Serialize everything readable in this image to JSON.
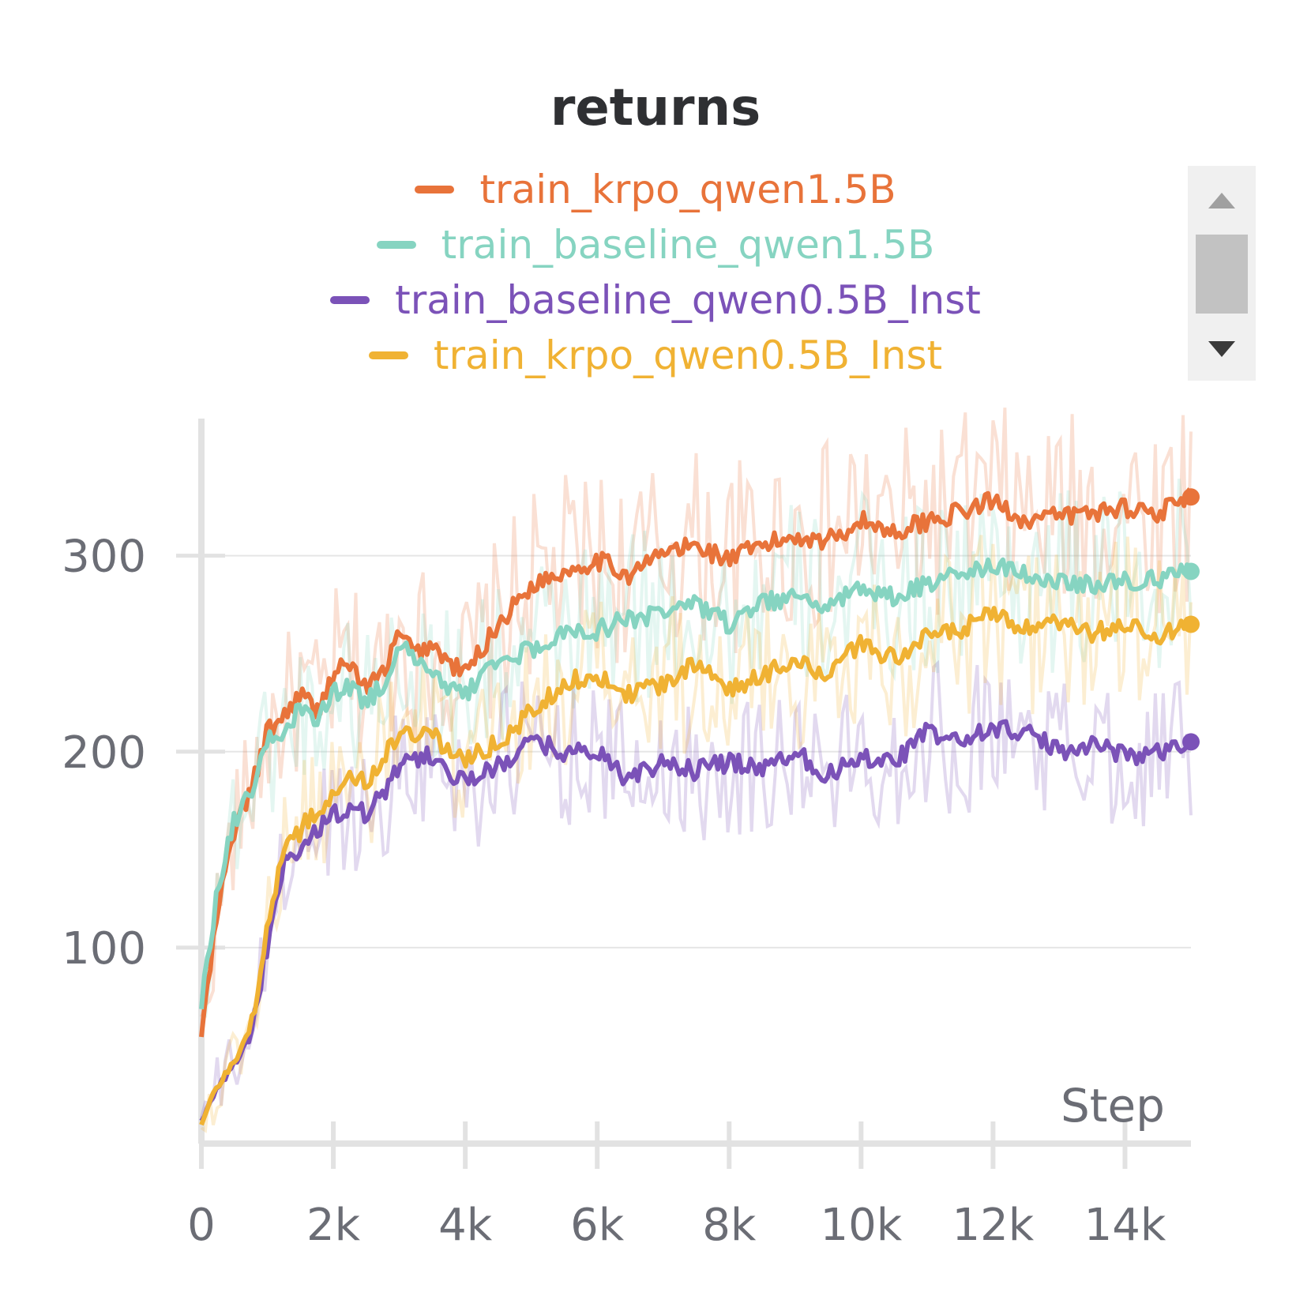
{
  "chart_data": {
    "type": "line",
    "title": "returns",
    "xlabel": "Step",
    "ylabel": "",
    "xlim": [
      0,
      15000
    ],
    "ylim": [
      0,
      370
    ],
    "xticks": [
      0,
      2000,
      4000,
      6000,
      8000,
      10000,
      12000,
      14000
    ],
    "xtick_labels": [
      "0",
      "2k",
      "4k",
      "6k",
      "8k",
      "10k",
      "12k",
      "14k"
    ],
    "yticks": [
      100,
      200,
      300
    ],
    "ytick_labels": [
      "100",
      "200",
      "300"
    ],
    "grid": true,
    "legend_position": "top",
    "series": [
      {
        "name": "train_krpo_qwen1.5B",
        "color": "#e8733a",
        "x": [
          0,
          250,
          500,
          750,
          1000,
          1250,
          1500,
          1750,
          2000,
          2250,
          2500,
          2750,
          3000,
          3250,
          3500,
          3750,
          4000,
          4500,
          5000,
          5500,
          6000,
          6500,
          7000,
          7500,
          8000,
          8500,
          9000,
          9500,
          10000,
          10500,
          11000,
          11500,
          12000,
          12500,
          13000,
          13500,
          14000,
          14500,
          15000
        ],
        "values": [
          55,
          120,
          160,
          180,
          210,
          218,
          230,
          220,
          240,
          245,
          232,
          240,
          260,
          250,
          255,
          245,
          240,
          265,
          285,
          292,
          298,
          290,
          302,
          305,
          298,
          305,
          310,
          308,
          318,
          312,
          318,
          322,
          328,
          318,
          320,
          322,
          325,
          322,
          330
        ]
      },
      {
        "name": "train_baseline_qwen1.5B",
        "color": "#86d4c1",
        "x": [
          0,
          250,
          500,
          750,
          1000,
          1250,
          1500,
          1750,
          2000,
          2250,
          2500,
          2750,
          3000,
          3250,
          3500,
          3750,
          4000,
          4500,
          5000,
          5500,
          6000,
          6500,
          7000,
          7500,
          8000,
          8500,
          9000,
          9500,
          10000,
          10500,
          11000,
          11500,
          12000,
          12500,
          13000,
          13500,
          14000,
          14500,
          15000
        ],
        "values": [
          70,
          130,
          165,
          180,
          205,
          212,
          222,
          215,
          230,
          232,
          225,
          235,
          255,
          245,
          240,
          232,
          230,
          245,
          252,
          260,
          262,
          268,
          270,
          275,
          265,
          275,
          280,
          275,
          285,
          278,
          285,
          290,
          295,
          290,
          288,
          285,
          287,
          288,
          292
        ]
      },
      {
        "name": "train_baseline_qwen0.5B_Inst",
        "color": "#7b52b8",
        "x": [
          0,
          250,
          500,
          750,
          1000,
          1250,
          1500,
          1750,
          2000,
          2250,
          2500,
          2750,
          3000,
          3250,
          3500,
          3750,
          4000,
          4500,
          5000,
          5500,
          6000,
          6500,
          7000,
          7500,
          8000,
          8500,
          9000,
          9500,
          10000,
          10500,
          11000,
          11500,
          12000,
          12500,
          13000,
          13500,
          14000,
          14500,
          15000
        ],
        "values": [
          12,
          28,
          40,
          55,
          100,
          142,
          150,
          160,
          168,
          172,
          168,
          178,
          192,
          196,
          198,
          190,
          185,
          192,
          205,
          200,
          200,
          185,
          195,
          190,
          195,
          192,
          200,
          188,
          198,
          195,
          210,
          205,
          212,
          210,
          200,
          205,
          198,
          200,
          205
        ]
      },
      {
        "name": "train_krpo_qwen0.5B_Inst",
        "color": "#f0b233",
        "x": [
          0,
          250,
          500,
          750,
          1000,
          1250,
          1500,
          1750,
          2000,
          2250,
          2500,
          2750,
          3000,
          3250,
          3500,
          3750,
          4000,
          4500,
          5000,
          5500,
          6000,
          6500,
          7000,
          7500,
          8000,
          8500,
          9000,
          9500,
          10000,
          10500,
          11000,
          11500,
          12000,
          12500,
          13000,
          13500,
          14000,
          14500,
          15000
        ],
        "values": [
          10,
          30,
          42,
          60,
          110,
          150,
          160,
          170,
          180,
          188,
          185,
          195,
          212,
          205,
          210,
          200,
          195,
          205,
          220,
          235,
          240,
          228,
          235,
          245,
          230,
          240,
          245,
          240,
          255,
          248,
          258,
          262,
          270,
          262,
          265,
          260,
          265,
          258,
          265
        ]
      }
    ]
  }
}
